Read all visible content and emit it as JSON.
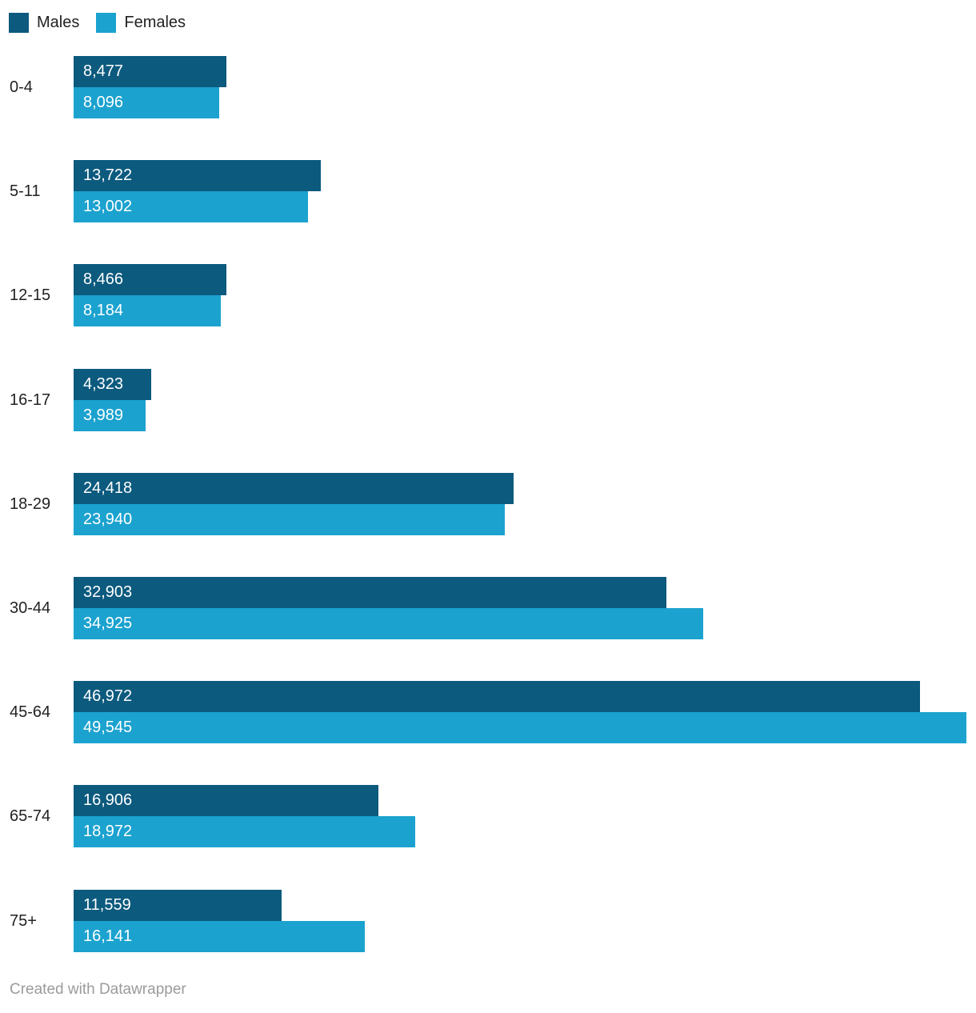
{
  "legend": {
    "position": "top-left"
  },
  "footer": {
    "text": "Created with Datawrapper",
    "color": "#9b9b9b"
  },
  "chart_data": {
    "type": "bar",
    "orientation": "horizontal",
    "title": "",
    "xlabel": "",
    "ylabel": "",
    "grid": false,
    "legend_position": "top-left",
    "value_labels": "inside-left, white, thousands separators",
    "xlim": [
      0,
      49545
    ],
    "categories": [
      "0-4",
      "5-11",
      "12-15",
      "16-17",
      "18-29",
      "30-44",
      "45-64",
      "65-74",
      "75+"
    ],
    "series": [
      {
        "name": "Males",
        "color": "#0C5A7E",
        "values": [
          8477,
          13722,
          8466,
          4323,
          24418,
          32903,
          46972,
          16906,
          11559
        ],
        "labels": [
          "8,477",
          "13,722",
          "8,466",
          "4,323",
          "24,418",
          "32,903",
          "46,972",
          "16,906",
          "11,559"
        ]
      },
      {
        "name": "Females",
        "color": "#1BA2CF",
        "values": [
          8096,
          13002,
          8184,
          3989,
          23940,
          34925,
          49545,
          18972,
          16141
        ],
        "labels": [
          "8,096",
          "13,002",
          "8,184",
          "3,989",
          "23,940",
          "34,925",
          "49,545",
          "18,972",
          "16,141"
        ]
      }
    ]
  }
}
